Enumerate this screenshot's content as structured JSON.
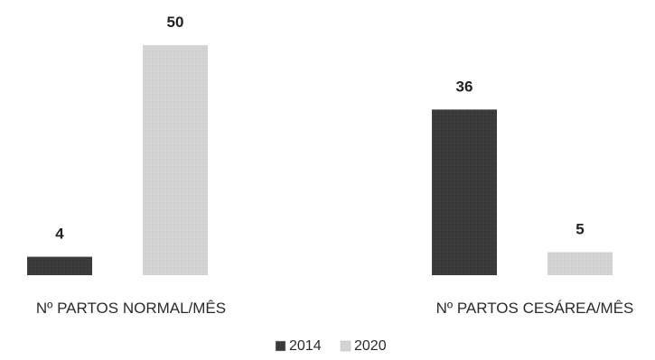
{
  "chart_data": {
    "type": "bar",
    "categories": [
      "Nº PARTOS NORMAL/MÊS",
      "Nº PARTOS CESÁREA/MÊS"
    ],
    "series": [
      {
        "name": "2014",
        "values": [
          4,
          36
        ],
        "color": "#3a3a3a"
      },
      {
        "name": "2020",
        "values": [
          50,
          5
        ],
        "color": "#d4d4d4"
      }
    ],
    "data_labels": true,
    "legend_position": "bottom",
    "grid": false,
    "ylim": [
      0,
      50
    ]
  }
}
